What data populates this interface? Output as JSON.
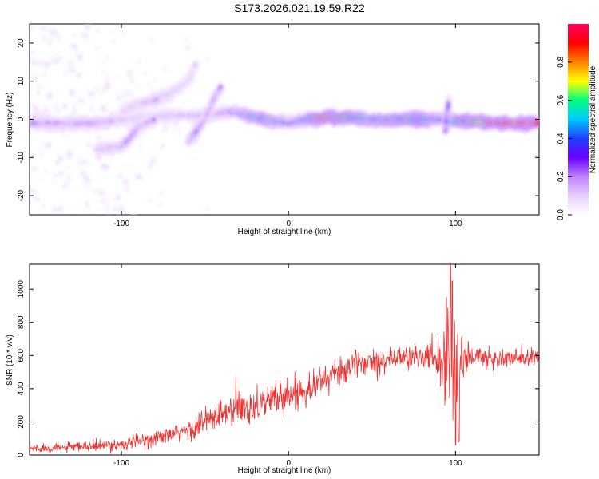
{
  "title": "S173.2026.021.19.59.R22",
  "chart_data": [
    {
      "type": "heatmap",
      "name": "spectrogram",
      "xlabel": "Height of straight line (km)",
      "ylabel": "Frequency (Hz)",
      "xlim": [
        -155,
        150
      ],
      "ylim": [
        -25,
        25
      ],
      "xticks": [
        -100,
        0,
        100
      ],
      "yticks": [
        -20,
        -10,
        0,
        10,
        20
      ],
      "colorbar": {
        "label": "Normalized spectral amplitude",
        "range": [
          0,
          1
        ],
        "ticks": [
          "0.0",
          "0.2",
          "0.4",
          "0.6",
          "0.8"
        ],
        "colors": [
          "#ffffff",
          "#e8d0ff",
          "#c080ff",
          "#6a00ff",
          "#2040ff",
          "#00c8ff",
          "#00ff80",
          "#ffff00",
          "#ff8000",
          "#ff0000",
          "#ff0060"
        ]
      },
      "traces": [
        {
          "name": "main carrier",
          "points": [
            [
              -155,
              -1,
              0.28
            ],
            [
              -130,
              -1,
              0.26
            ],
            [
              -115,
              -1,
              0.3
            ],
            [
              -100,
              0,
              0.2
            ],
            [
              -85,
              0.5,
              0.2
            ],
            [
              -70,
              1,
              0.22
            ],
            [
              -50,
              1,
              0.2
            ],
            [
              -35,
              2,
              0.3
            ],
            [
              -25,
              1,
              0.45
            ],
            [
              -15,
              0,
              0.55
            ],
            [
              0,
              -1,
              0.35
            ],
            [
              10,
              0,
              0.45
            ],
            [
              20,
              0.5,
              0.8
            ],
            [
              35,
              0.5,
              0.6
            ],
            [
              50,
              0,
              0.5
            ],
            [
              65,
              0,
              0.55
            ],
            [
              80,
              0,
              0.6
            ],
            [
              92,
              0,
              0.4
            ],
            [
              98,
              -0.5,
              0.5
            ],
            [
              110,
              -0.5,
              0.7
            ],
            [
              125,
              -1,
              0.9
            ],
            [
              140,
              -1,
              1.0
            ],
            [
              150,
              -1,
              1.0
            ]
          ]
        },
        {
          "name": "lower branch",
          "points": [
            [
              -115,
              -8,
              0.22
            ],
            [
              -100,
              -7,
              0.25
            ],
            [
              -95,
              -5,
              0.3
            ],
            [
              -90,
              -2,
              0.25
            ],
            [
              -80,
              0,
              0.2
            ]
          ]
        },
        {
          "name": "rising branch 1",
          "points": [
            [
              -100,
              2,
              0.15
            ],
            [
              -90,
              4,
              0.2
            ],
            [
              -80,
              5,
              0.25
            ],
            [
              -70,
              7,
              0.2
            ],
            [
              -60,
              10,
              0.15
            ],
            [
              -55,
              15,
              0.12
            ]
          ]
        },
        {
          "name": "rising branch 2",
          "points": [
            [
              -60,
              -6,
              0.25
            ],
            [
              -55,
              -3,
              0.3
            ],
            [
              -50,
              0,
              0.25
            ],
            [
              -45,
              5,
              0.25
            ],
            [
              -40,
              9,
              0.2
            ]
          ]
        },
        {
          "name": "spike 95 km",
          "points": [
            [
              94,
              -3,
              0.25
            ],
            [
              95,
              2,
              0.35
            ],
            [
              96,
              5,
              0.3
            ]
          ]
        }
      ]
    },
    {
      "type": "line",
      "name": "snr",
      "xlabel": "Height of straight line (km)",
      "ylabel": "SNR (10 * v/v)",
      "xlim": [
        -155,
        150
      ],
      "ylim": [
        0,
        1150
      ],
      "xticks": [
        -100,
        0,
        100
      ],
      "yticks": [
        0,
        200,
        400,
        600,
        800,
        1000
      ],
      "color": "#ee3333",
      "envelope_x": [
        -155,
        -130,
        -110,
        -100,
        -90,
        -80,
        -70,
        -60,
        -50,
        -40,
        -30,
        -20,
        -10,
        0,
        10,
        20,
        30,
        40,
        50,
        60,
        70,
        80,
        85,
        90,
        95,
        100,
        105,
        110,
        120,
        130,
        140,
        150
      ],
      "envelope_mean": [
        40,
        45,
        55,
        65,
        80,
        100,
        120,
        150,
        200,
        240,
        280,
        300,
        340,
        360,
        400,
        450,
        500,
        540,
        570,
        580,
        590,
        590,
        590,
        580,
        600,
        550,
        580,
        600,
        580,
        580,
        580,
        580
      ],
      "envelope_noise": [
        25,
        25,
        30,
        35,
        40,
        45,
        50,
        60,
        80,
        100,
        110,
        100,
        90,
        90,
        90,
        80,
        75,
        70,
        70,
        70,
        70,
        70,
        90,
        150,
        300,
        450,
        150,
        70,
        60,
        60,
        60,
        60
      ],
      "notable_points": [
        [
          97,
          1150
        ],
        [
          100,
          60
        ],
        [
          98,
          1050
        ],
        [
          102,
          80
        ]
      ]
    }
  ]
}
